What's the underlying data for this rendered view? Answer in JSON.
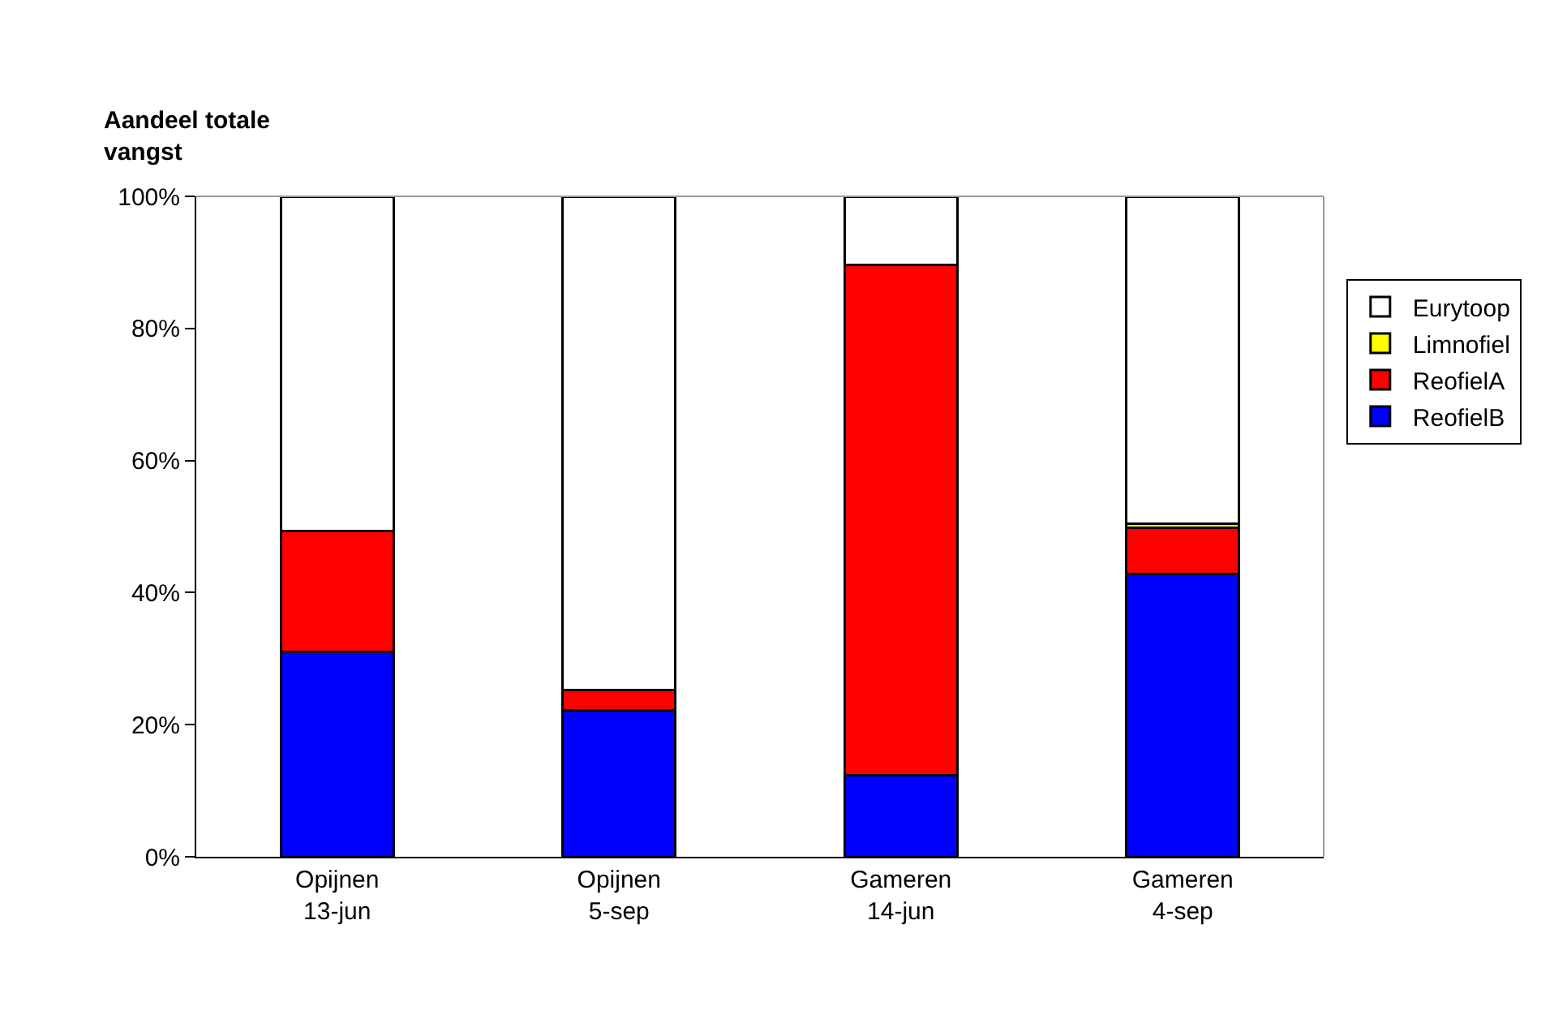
{
  "chart_data": {
    "type": "bar",
    "stacked": true,
    "ylabel": "Aandeel totale\nvangst",
    "categories": [
      "Opijnen\n13-jun",
      "Opijnen\n5-sep",
      "Gameren\n14-jun",
      "Gameren\n4-sep"
    ],
    "series": [
      {
        "name": "ReofielB",
        "color": "#0000ff",
        "values": [
          31.0,
          22.2,
          12.4,
          42.8
        ]
      },
      {
        "name": "ReofielA",
        "color": "#ff0000",
        "values": [
          18.3,
          3.0,
          77.2,
          7.0
        ]
      },
      {
        "name": "Limnofiel",
        "color": "#ffff00",
        "values": [
          0,
          0,
          0,
          0.6
        ]
      },
      {
        "name": "Eurytoop",
        "color": "#ffffff",
        "values": [
          50.7,
          74.8,
          10.4,
          49.6
        ]
      }
    ],
    "ylim": [
      0,
      100
    ],
    "yticks": [
      {
        "value": 0,
        "label": "0%"
      },
      {
        "value": 20,
        "label": "20%"
      },
      {
        "value": 40,
        "label": "40%"
      },
      {
        "value": 60,
        "label": "60%"
      },
      {
        "value": 80,
        "label": "80%"
      },
      {
        "value": 100,
        "label": "100%"
      }
    ],
    "legend": "right"
  }
}
